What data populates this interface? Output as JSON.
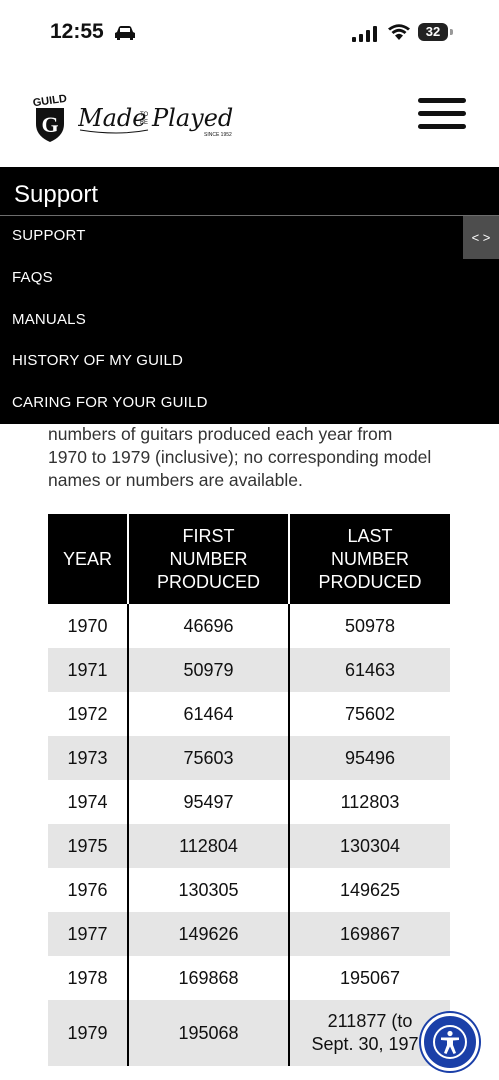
{
  "status_bar": {
    "time": "12:55",
    "battery_level": "32",
    "icons": [
      "car-icon",
      "signal-icon",
      "wifi-icon",
      "battery-icon"
    ]
  },
  "header": {
    "logo_text": "GUILD",
    "tagline": "Made to be Played",
    "tagline_sub": "SINCE 1952",
    "menu_icon": "hamburger-menu-icon"
  },
  "support_nav": {
    "title": "Support",
    "toggle_label": "< >",
    "items": [
      {
        "label": "SUPPORT"
      },
      {
        "label": "FAQS"
      },
      {
        "label": "MANUALS"
      },
      {
        "label": "HISTORY OF MY GUILD"
      },
      {
        "label": "CARING FOR YOUR GUILD"
      }
    ]
  },
  "content": {
    "intro_lines": [
      "numbers of guitars produced each year from",
      "1970 to 1979 (inclusive); no corresponding model",
      "names or numbers are available."
    ]
  },
  "table": {
    "headers": {
      "year": "YEAR",
      "first_lines": [
        "FIRST",
        "NUMBER",
        "PRODUCED"
      ],
      "last_lines": [
        "LAST",
        "NUMBER",
        "PRODUCED"
      ]
    },
    "rows": [
      {
        "year": "1970",
        "first": "46696",
        "last": "50978"
      },
      {
        "year": "1971",
        "first": "50979",
        "last": "61463"
      },
      {
        "year": "1972",
        "first": "61464",
        "last": "75602"
      },
      {
        "year": "1973",
        "first": "75603",
        "last": "95496"
      },
      {
        "year": "1974",
        "first": "95497",
        "last": "112803"
      },
      {
        "year": "1975",
        "first": "112804",
        "last": "130304"
      },
      {
        "year": "1976",
        "first": "130305",
        "last": "149625"
      },
      {
        "year": "1977",
        "first": "149626",
        "last": "169867"
      },
      {
        "year": "1978",
        "first": "169868",
        "last": "195067"
      },
      {
        "year": "1979",
        "first": "195068",
        "last_lines": [
          "211877 (to",
          "Sept. 30, 1979"
        ]
      }
    ]
  },
  "accessibility": {
    "icon": "accessibility-icon"
  },
  "colors": {
    "header_bg": "#000000",
    "alt_row_bg": "#e5e5e5",
    "toggle_bg": "#4d4d4d",
    "a11y_blue": "#1a3fa8"
  }
}
